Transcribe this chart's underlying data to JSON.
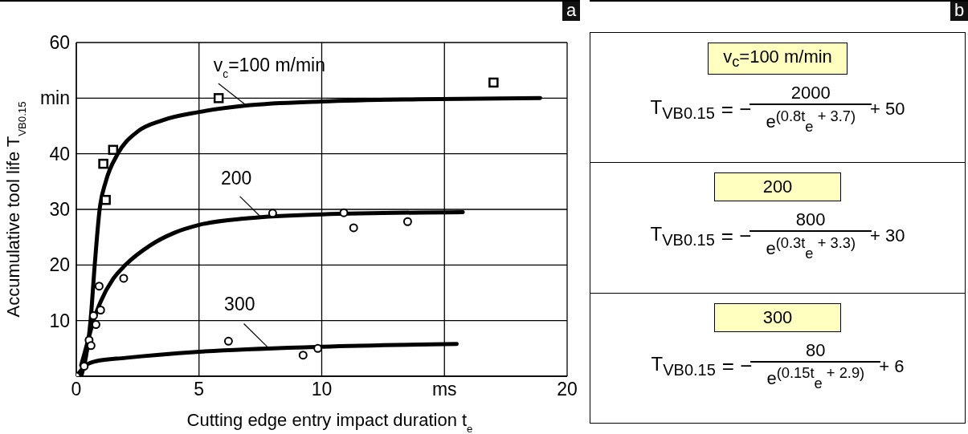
{
  "chart_data": [
    {
      "type": "line",
      "title": "a",
      "xlabel": "Cutting edge entry impact duration t$_{e}$",
      "ylabel": "Accumulative tool life T$_{VB0.15}$",
      "xlim": [
        0,
        20
      ],
      "ylim": [
        0,
        60
      ],
      "xticks": [
        0,
        5,
        10,
        {
          "value": 15,
          "label": "ms"
        },
        20
      ],
      "yticks": [
        10,
        20,
        30,
        40,
        {
          "value": 50,
          "label": "min"
        },
        60
      ],
      "grid": true,
      "line_style": "solid",
      "series": [
        {
          "type": "line",
          "color": "#000000",
          "x": [
            0.2,
            0.45,
            0.58,
            0.75,
            0.95,
            1.2,
            1.69,
            2.5,
            3.5,
            5,
            7,
            10,
            14,
            18.9
          ],
          "values": [
            0,
            5,
            10,
            20,
            30,
            35,
            40,
            44,
            46,
            47.5,
            48.7,
            49.4,
            49.8,
            50
          ]
        },
        {
          "type": "line",
          "color": "#000000",
          "x": [
            0.2,
            0.45,
            0.7,
            1.0,
            1.5,
            2,
            3,
            4,
            5,
            7,
            10,
            15.75
          ],
          "values": [
            2,
            6,
            10,
            13.5,
            17.5,
            20,
            23.5,
            25.8,
            27.2,
            28.4,
            29.1,
            29.5
          ]
        },
        {
          "type": "line",
          "color": "#000000",
          "x": [
            0,
            0.4,
            0.8,
            2,
            5,
            10,
            15.5
          ],
          "values": [
            0,
            2,
            2.7,
            3.3,
            4.4,
            5.3,
            5.8
          ]
        },
        {
          "type": "scatter",
          "marker": "square",
          "color": "#000000",
          "x": [
            5.8,
            1.1,
            1.5,
            1.2,
            17
          ],
          "values": [
            50,
            38.2,
            40.7,
            31.7,
            52.8
          ]
        },
        {
          "type": "scatter",
          "marker": "circle",
          "color": "#000000",
          "x": [
            8,
            10.9,
            11.3,
            13.5,
            0.93,
            1.93,
            0.7,
            0.8,
            0.99,
            0.52,
            0.6
          ],
          "values": [
            29.3,
            29.4,
            26.7,
            27.8,
            16.2,
            17.6,
            10.9,
            9.3,
            11.9,
            6.5,
            5.5
          ]
        },
        {
          "type": "scatter",
          "marker": "circle",
          "color": "#000000",
          "x": [
            0,
            0.32,
            6.2,
            9.24,
            9.84
          ],
          "values": [
            0,
            1.8,
            6.3,
            3.8,
            5
          ]
        }
      ],
      "annotations": [
        {
          "text": "v$_{c}$=100 m/min",
          "x": 6.9,
          "y": 48.8
        },
        {
          "text": "200",
          "x": 7.5,
          "y": 28.7
        },
        {
          "text": "300",
          "x": 7.8,
          "y": 5.2
        }
      ]
    },
    {
      "type": "other",
      "title": "b",
      "annotations": [
        "v$_{c}$=100 m/min",
        "T$_{VB0.15}$",
        "= −",
        "2000",
        "e$^{(0.8t}$$_{e}$$^{ + 3.7)}$",
        "+ 50",
        "200",
        "T$_{VB0.15}$",
        "= −",
        "800",
        "e$^{(0.3t}$$_{e}$$^{ + 3.3)}$",
        "+ 30",
        "300",
        "T$_{VB0.15}$",
        "= −",
        "80",
        "e$^{(0.15t}$$_{e}$$^{ + 2.9)}$",
        "+ 6"
      ]
    }
  ]
}
